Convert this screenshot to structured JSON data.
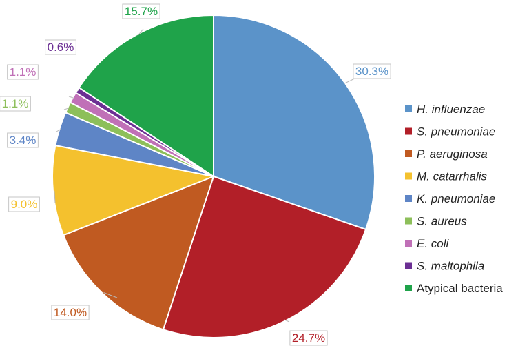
{
  "chart_data": {
    "type": "pie",
    "title": "",
    "start_angle_deg": 0,
    "direction": "clockwise",
    "legend_position": "right",
    "series": [
      {
        "name": "H. influenzae",
        "value": 30.3,
        "label": "30.3%",
        "color": "#5b93c9",
        "italic": true
      },
      {
        "name": "S. pneumoniae",
        "value": 24.7,
        "label": "24.7%",
        "color": "#b21f28",
        "italic": true
      },
      {
        "name": "P. aeruginosa",
        "value": 14.0,
        "label": "14.0%",
        "color": "#c05a21",
        "italic": true
      },
      {
        "name": "M. catarrhalis",
        "value": 9.0,
        "label": "9.0%",
        "color": "#f4c12e",
        "italic": true
      },
      {
        "name": "K. pneumoniae",
        "value": 3.4,
        "label": "3.4%",
        "color": "#5e85c6",
        "italic": true
      },
      {
        "name": "S. aureus",
        "value": 1.1,
        "label": "1.1%",
        "color": "#8dbf5a",
        "italic": true
      },
      {
        "name": "E. coli",
        "value": 1.1,
        "label": "1.1%",
        "color": "#c070b7",
        "italic": true
      },
      {
        "name": "S. maltophila",
        "value": 0.6,
        "label": "0.6%",
        "color": "#6b2f93",
        "italic": true
      },
      {
        "name": "Atypical bacteria",
        "value": 15.7,
        "label": "15.7%",
        "color": "#1fa34a",
        "italic": false
      }
    ]
  }
}
